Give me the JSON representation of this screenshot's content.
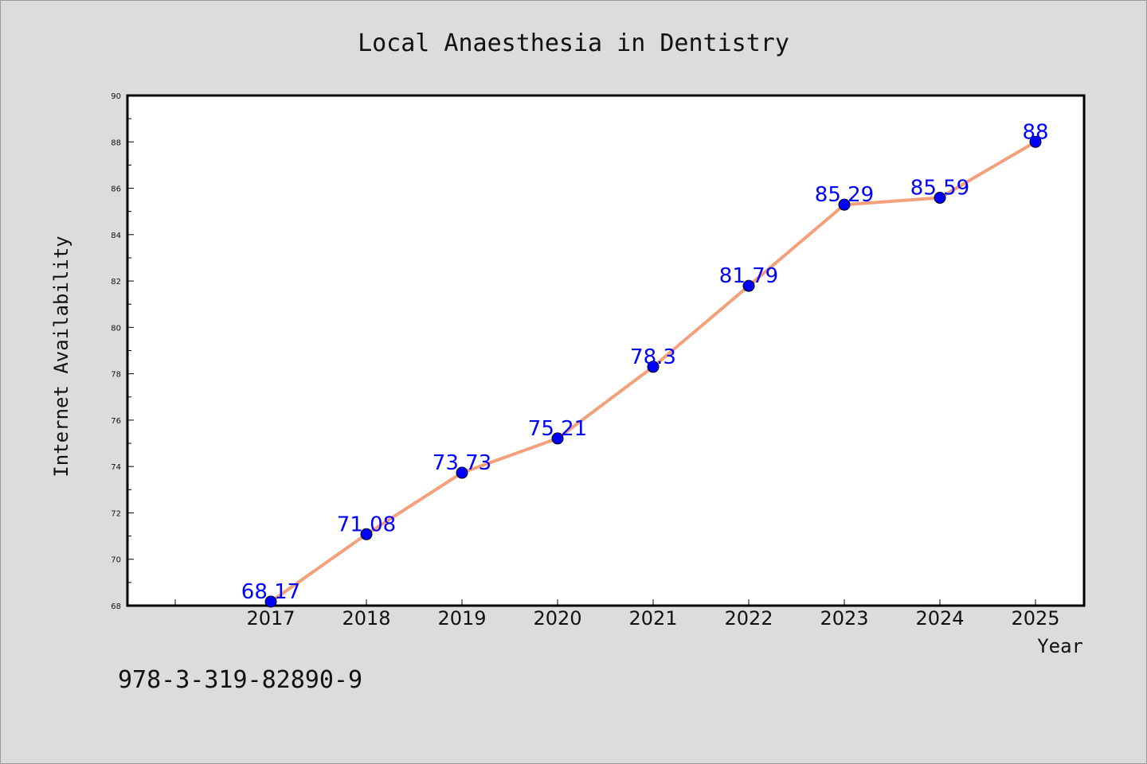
{
  "chart_data": {
    "type": "line",
    "title": "Local Anaesthesia in Dentistry",
    "xlabel": "Year",
    "ylabel": "Internet Availability",
    "categories": [
      "2017",
      "2018",
      "2019",
      "2020",
      "2021",
      "2022",
      "2023",
      "2024",
      "2025"
    ],
    "series": [
      {
        "values": [
          68.17,
          71.08,
          73.73,
          75.21,
          78.3,
          81.79,
          85.29,
          85.59,
          88
        ],
        "data_labels": [
          "68.17",
          "71.08",
          "73.73",
          "75.21",
          "78.3",
          "81.79",
          "85.29",
          "85.59",
          "88"
        ],
        "line_color": "#f4a07a",
        "marker_color": "#0000ff"
      }
    ],
    "ylim": [
      68,
      90
    ],
    "yticks": [
      "68",
      "70",
      "72",
      "74",
      "76",
      "78",
      "80",
      "82",
      "84",
      "86",
      "88",
      "90"
    ],
    "grid": false,
    "legend": "none"
  },
  "footer": {
    "isbn": "978-3-319-82890-9"
  },
  "colors": {
    "background": "#dcdcdc",
    "plot_background": "#ffffff"
  }
}
